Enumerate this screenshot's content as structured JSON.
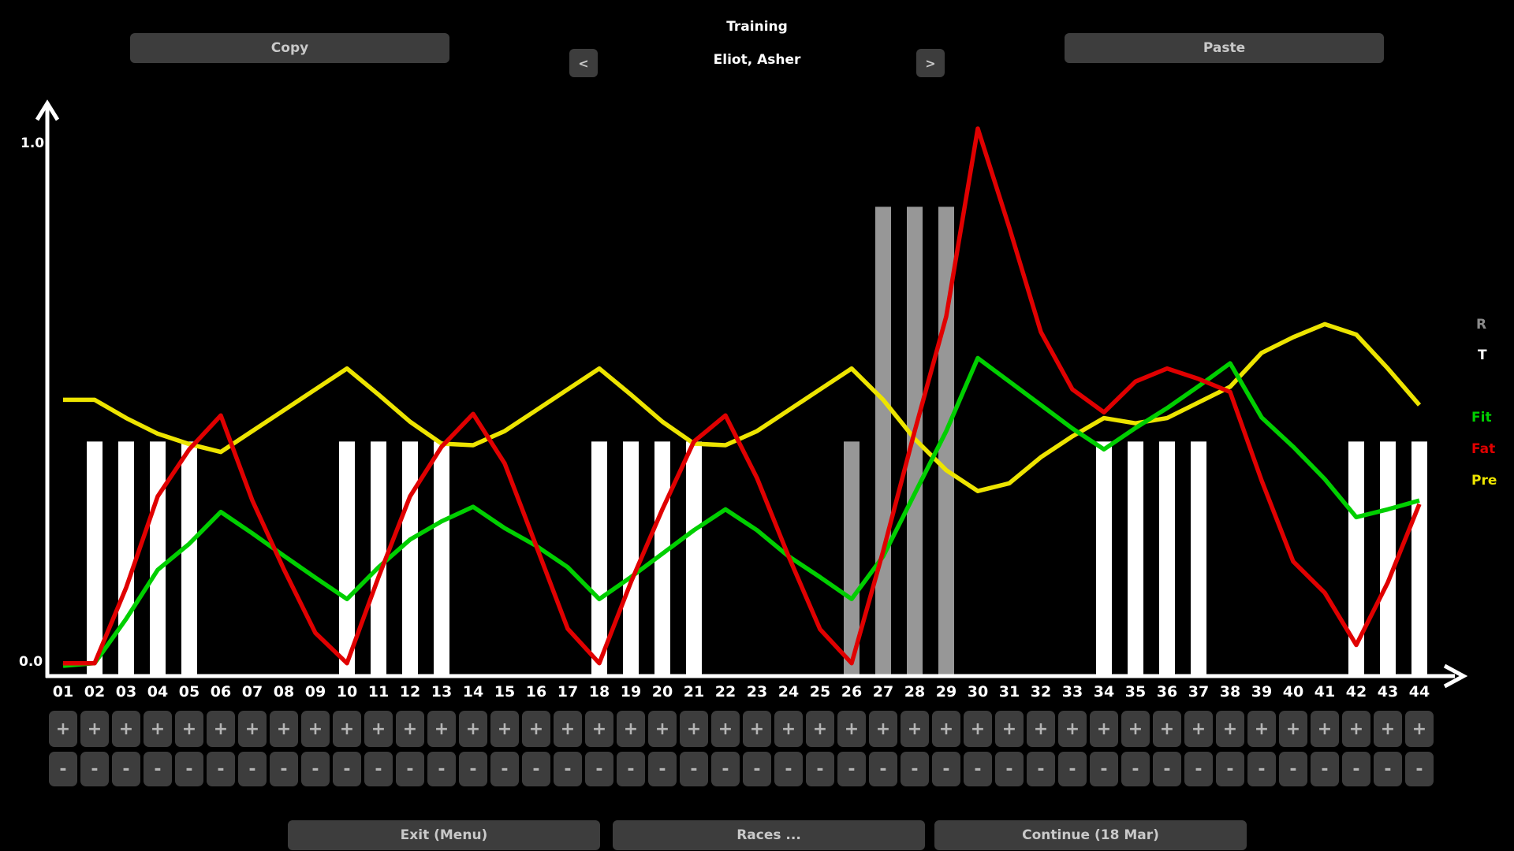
{
  "header": {
    "copy_label": "Copy",
    "paste_label": "Paste",
    "prev_label": "<",
    "next_label": ">",
    "title": "Training",
    "athlete": "Eliot, Asher"
  },
  "axis": {
    "y_max_label": "1.0",
    "y_min_label": "0.0"
  },
  "legend": {
    "r": "R",
    "t": "T",
    "fit": "Fit",
    "fat": "Fat",
    "pre": "Pre"
  },
  "week_controls": {
    "increase_label": "+",
    "decrease_label": "-"
  },
  "footer": {
    "exit_label": "Exit (Menu)",
    "races_label": "Races ...",
    "continue_label": "Continue (18 Mar)"
  },
  "colors": {
    "fit_green": "#00cf00",
    "fat_red": "#e00000",
    "pre_yellow": "#ede400",
    "bar_white": "#ffffff",
    "bar_gray": "#979797",
    "label_gray": "#8b8b8b",
    "label_white": "#ffffff"
  },
  "chart_data": {
    "type": "line",
    "title": "Training",
    "xlabel": "",
    "ylabel": "",
    "ylim": [
      0.0,
      1.0
    ],
    "y_tick_labels": [
      "0.0",
      "1.0"
    ],
    "grid": false,
    "legend_position": "right",
    "categories": [
      "01",
      "02",
      "03",
      "04",
      "05",
      "06",
      "07",
      "08",
      "09",
      "10",
      "11",
      "12",
      "13",
      "14",
      "15",
      "16",
      "17",
      "18",
      "19",
      "20",
      "21",
      "22",
      "23",
      "24",
      "25",
      "26",
      "27",
      "28",
      "29",
      "30",
      "31",
      "32",
      "33",
      "34",
      "35",
      "36",
      "37",
      "38",
      "39",
      "40",
      "41",
      "42",
      "43",
      "44"
    ],
    "series": [
      {
        "name": "Pre",
        "color_key": "pre_yellow",
        "values": [
          0.51,
          0.51,
          0.475,
          0.445,
          0.425,
          0.41,
          0.45,
          0.49,
          0.53,
          0.57,
          0.52,
          0.468,
          0.426,
          0.423,
          0.45,
          0.49,
          0.53,
          0.57,
          0.52,
          0.468,
          0.426,
          0.423,
          0.45,
          0.49,
          0.53,
          0.57,
          0.51,
          0.435,
          0.375,
          0.335,
          0.35,
          0.4,
          0.44,
          0.475,
          0.465,
          0.475,
          0.505,
          0.535,
          0.6,
          0.63,
          0.655,
          0.635,
          0.57,
          0.5
        ]
      },
      {
        "name": "Fit",
        "color_key": "fit_green",
        "values": [
          0.0,
          0.005,
          0.09,
          0.184,
          0.234,
          0.295,
          0.254,
          0.211,
          0.169,
          0.128,
          0.189,
          0.242,
          0.277,
          0.305,
          0.264,
          0.23,
          0.189,
          0.128,
          0.17,
          0.215,
          0.26,
          0.3,
          0.26,
          0.21,
          0.17,
          0.128,
          0.21,
          0.33,
          0.45,
          0.59,
          0.545,
          0.5,
          0.455,
          0.415,
          0.456,
          0.494,
          0.536,
          0.58,
          0.476,
          0.42,
          0.358,
          0.285,
          0.3,
          0.317
        ]
      },
      {
        "name": "Fat",
        "color_key": "fat_red",
        "values": [
          0.005,
          0.005,
          0.15,
          0.325,
          0.415,
          0.48,
          0.317,
          0.185,
          0.063,
          0.005,
          0.17,
          0.325,
          0.42,
          0.483,
          0.388,
          0.23,
          0.071,
          0.005,
          0.16,
          0.3,
          0.43,
          0.48,
          0.36,
          0.21,
          0.07,
          0.005,
          0.22,
          0.45,
          0.67,
          1.03,
          0.84,
          0.64,
          0.53,
          0.486,
          0.545,
          0.57,
          0.55,
          0.525,
          0.355,
          0.2,
          0.14,
          0.04,
          0.16,
          0.31
        ]
      }
    ],
    "bars": [
      {
        "week": 2,
        "value": 0.43,
        "color": "white"
      },
      {
        "week": 3,
        "value": 0.43,
        "color": "white"
      },
      {
        "week": 4,
        "value": 0.43,
        "color": "white"
      },
      {
        "week": 5,
        "value": 0.43,
        "color": "white"
      },
      {
        "week": 10,
        "value": 0.43,
        "color": "white"
      },
      {
        "week": 11,
        "value": 0.43,
        "color": "white"
      },
      {
        "week": 12,
        "value": 0.43,
        "color": "white"
      },
      {
        "week": 13,
        "value": 0.43,
        "color": "white"
      },
      {
        "week": 18,
        "value": 0.43,
        "color": "white"
      },
      {
        "week": 19,
        "value": 0.43,
        "color": "white"
      },
      {
        "week": 20,
        "value": 0.43,
        "color": "white"
      },
      {
        "week": 21,
        "value": 0.43,
        "color": "white"
      },
      {
        "week": 26,
        "value": 0.43,
        "color": "gray"
      },
      {
        "week": 27,
        "value": 0.88,
        "color": "gray"
      },
      {
        "week": 28,
        "value": 0.88,
        "color": "gray"
      },
      {
        "week": 29,
        "value": 0.88,
        "color": "gray"
      },
      {
        "week": 34,
        "value": 0.43,
        "color": "white"
      },
      {
        "week": 35,
        "value": 0.43,
        "color": "white"
      },
      {
        "week": 36,
        "value": 0.43,
        "color": "white"
      },
      {
        "week": 37,
        "value": 0.43,
        "color": "white"
      },
      {
        "week": 42,
        "value": 0.43,
        "color": "white"
      },
      {
        "week": 43,
        "value": 0.43,
        "color": "white"
      },
      {
        "week": 44,
        "value": 0.43,
        "color": "white"
      }
    ]
  }
}
